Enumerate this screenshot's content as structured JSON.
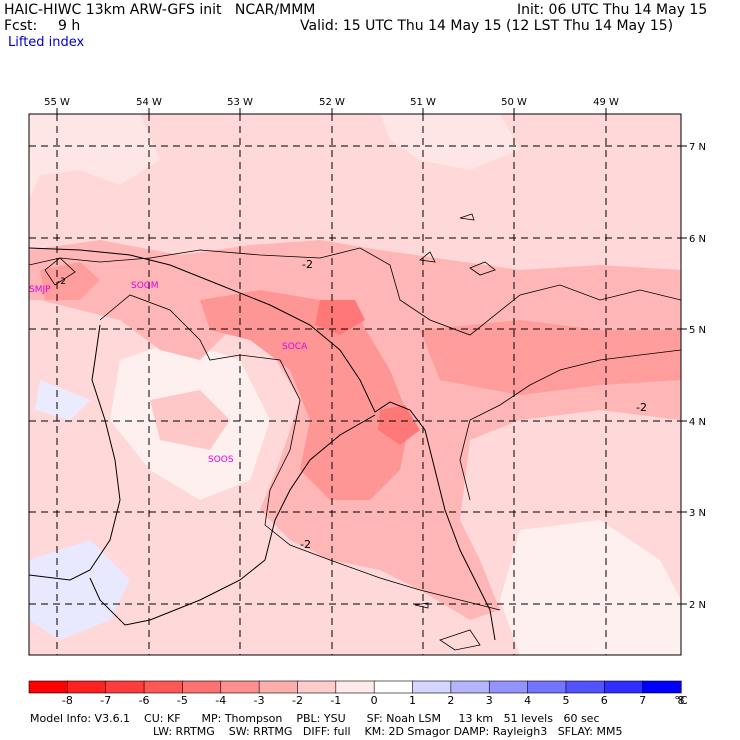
{
  "header": {
    "title_left": "HAIC-HIWC 13km ARW-GFS init   NCAR/MMM",
    "forecast_label": "Fcst:",
    "forecast_value": "9 h",
    "init": "Init: 06 UTC Thu 14 May 15",
    "valid": "Valid: 15 UTC Thu 14 May 15 (12 LST Thu 14 May 15)",
    "field": "Lifted index"
  },
  "map": {
    "lon_labels": [
      "55 W",
      "54 W",
      "53 W",
      "52 W",
      "51 W",
      "50 W",
      "49 W"
    ],
    "lat_labels": [
      "7 N",
      "6 N",
      "5 N",
      "4 N",
      "3 N",
      "2 N"
    ],
    "stations": [
      "SMJP",
      "SOGM",
      "SOCA",
      "SOOS"
    ],
    "contour_labels": [
      "-2",
      "-2",
      "-2",
      "-2"
    ],
    "colors": {
      "frame": "#000000",
      "station": "#e000e0",
      "bg_light": "#ffd9d9",
      "bg_mid": "#ffb6b6",
      "bg_strong": "#ff9696",
      "bg_strongest": "#ff7878",
      "bg_neutral": "#fff0f0",
      "bg_blue": "#e8e8ff"
    }
  },
  "colorbar": {
    "ticks": [
      "-8",
      "-7",
      "-6",
      "-5",
      "-4",
      "-3",
      "-2",
      "-1",
      "0",
      "1",
      "2",
      "3",
      "4",
      "5",
      "6",
      "7",
      "8"
    ],
    "unit": "°C",
    "colors": [
      "#ff0000",
      "#ff2020",
      "#ff3b3b",
      "#ff5656",
      "#ff7272",
      "#ff8f8f",
      "#ffaeae",
      "#ffcccc",
      "#ffe9e9",
      "#ffffff",
      "#d5d5ff",
      "#b4b4ff",
      "#9494ff",
      "#7474ff",
      "#5252ff",
      "#2e2eff",
      "#0000ff"
    ]
  },
  "footer": {
    "line1": "Model Info: V3.6.1    CU: KF      MP: Thompson    PBL: YSU      SF: Noah LSM     13 km   51 levels   60 sec",
    "line2": "LW: RRTMG    SW: RRTMG   DIFF: full    KM: 2D Smagor DAMP: Rayleigh3   SFLAY: MM5"
  }
}
